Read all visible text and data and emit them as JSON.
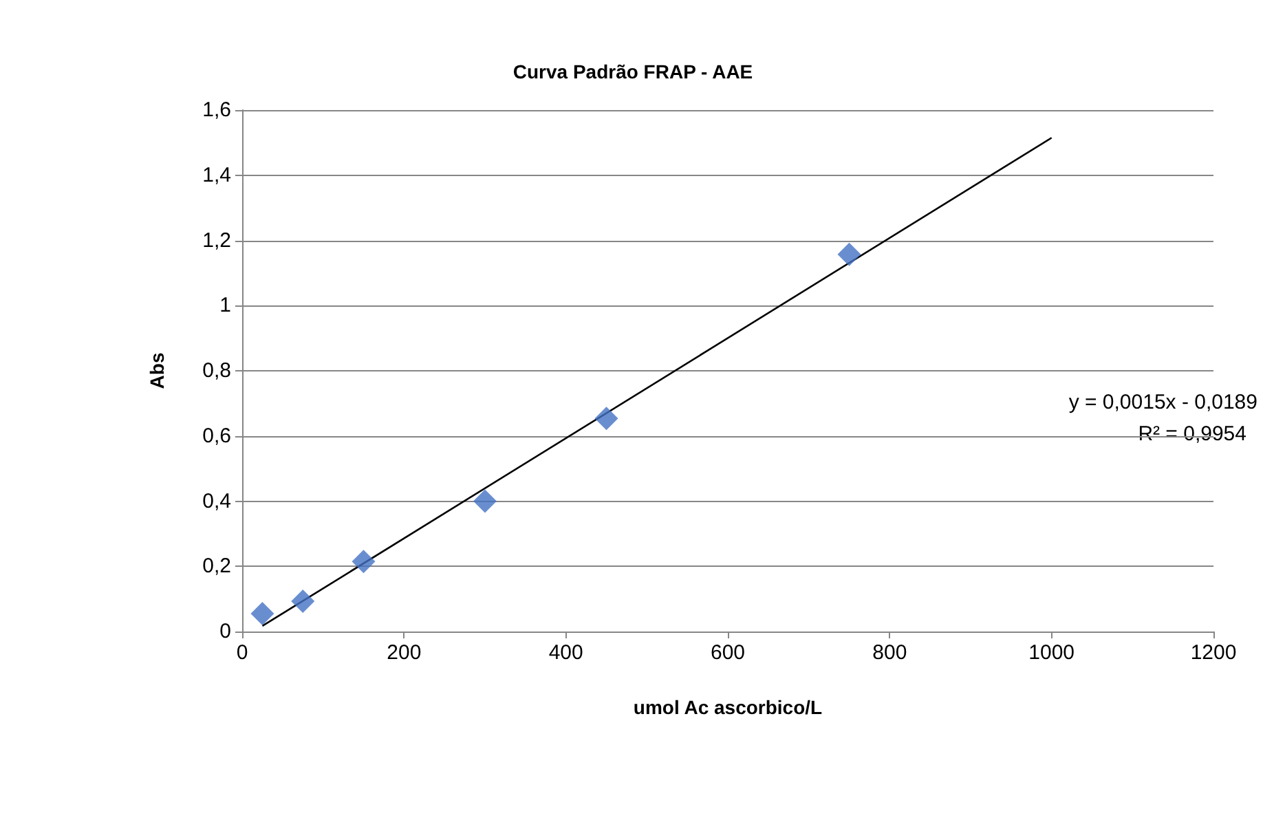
{
  "chart_data": {
    "type": "scatter",
    "title": "Curva Padrão FRAP - AAE",
    "xlabel": "umol Ac ascorbico/L",
    "ylabel": "Abs",
    "x": [
      25,
      75,
      150,
      300,
      450,
      750
    ],
    "series": [
      {
        "color": "#4472c4",
        "values": [
          0.055,
          0.093,
          0.215,
          0.4,
          0.654,
          1.157
        ]
      },
      {
        "type": "line",
        "color": "#000000",
        "marker": "none",
        "x": [
          25,
          1000
        ],
        "values": [
          0.017,
          1.515
        ]
      }
    ],
    "xlim": [
      0,
      1200
    ],
    "xticks": [
      0,
      200,
      400,
      600,
      800,
      1000,
      1200
    ],
    "ylim": [
      0,
      1.6
    ],
    "yticks": [
      0,
      {
        "value": 0.2,
        "label": "0,2"
      },
      {
        "value": 0.4,
        "label": "0,4"
      },
      {
        "value": 0.6,
        "label": "0,6"
      },
      {
        "value": 0.8,
        "label": "0,8"
      },
      1,
      {
        "value": 1.2,
        "label": "1,2"
      },
      {
        "value": 1.4,
        "label": "1,4"
      },
      {
        "value": 1.6,
        "label": "1,6"
      }
    ],
    "annotations": [
      "y = 0,0015x - 0,0189",
      "R² = 0,9954"
    ],
    "grid": "y",
    "marker": "diamond"
  }
}
